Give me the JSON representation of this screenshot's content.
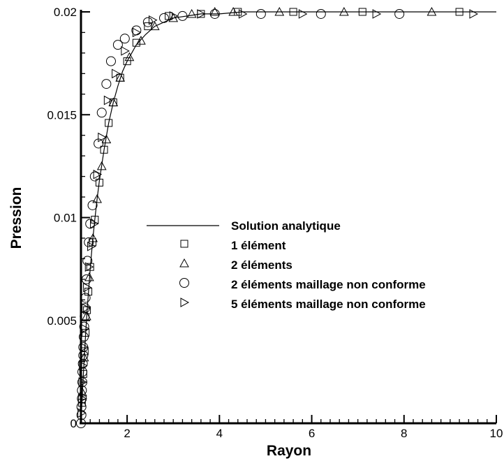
{
  "chart_data": {
    "type": "scatter",
    "title": "",
    "xlabel": "Rayon",
    "ylabel": "Pression",
    "xlim": [
      1,
      10
    ],
    "ylim": [
      0,
      0.02
    ],
    "x_ticks": [
      2,
      4,
      6,
      8,
      10
    ],
    "x_tick_labels": [
      "2",
      "4",
      "6",
      "8",
      "10"
    ],
    "y_ticks": [
      0,
      0.005,
      0.01,
      0.015,
      0.02
    ],
    "y_tick_labels": [
      "0",
      "0.005",
      "0.01",
      "0.015",
      "0.02"
    ],
    "grid": false,
    "legend_position": "center-right",
    "series": [
      {
        "name": "Solution analytique",
        "marker": "line",
        "x": [
          1.0,
          1.02,
          1.05,
          1.08,
          1.1,
          1.13,
          1.16,
          1.2,
          1.25,
          1.3,
          1.35,
          1.4,
          1.5,
          1.6,
          1.7,
          1.8,
          1.9,
          2.0,
          2.1,
          2.2,
          2.4,
          2.6,
          2.8,
          3.0,
          3.3,
          3.6,
          4.0,
          4.5,
          5.0,
          6.0,
          7.0,
          8.0,
          9.0,
          10.0
        ],
        "y": [
          0.0,
          0.00096,
          0.0023,
          0.0035,
          0.0043,
          0.0054,
          0.0063,
          0.0075,
          0.0088,
          0.0099,
          0.0109,
          0.0118,
          0.0133,
          0.0146,
          0.0156,
          0.0164,
          0.0171,
          0.0176,
          0.018,
          0.0184,
          0.0189,
          0.0193,
          0.0195,
          0.0197,
          0.0198,
          0.0199,
          0.0199,
          0.02,
          0.02,
          0.02,
          0.02,
          0.02,
          0.02,
          0.02
        ]
      },
      {
        "name": "1 élément",
        "marker": "square",
        "x": [
          1.02,
          1.05,
          1.08,
          1.1,
          1.13,
          1.16,
          1.2,
          1.25,
          1.3,
          1.4,
          1.5,
          1.6,
          1.7,
          1.85,
          2.0,
          2.2,
          2.45,
          2.9,
          3.6,
          4.4,
          5.6,
          7.1,
          9.2
        ],
        "y": [
          0.001,
          0.0024,
          0.0035,
          0.0044,
          0.0055,
          0.0064,
          0.0076,
          0.0088,
          0.0099,
          0.0117,
          0.0133,
          0.0146,
          0.0156,
          0.0168,
          0.0176,
          0.0185,
          0.0193,
          0.0198,
          0.0199,
          0.02,
          0.02,
          0.02,
          0.02
        ]
      },
      {
        "name": "2 éléments",
        "marker": "triangle",
        "x": [
          1.03,
          1.07,
          1.12,
          1.18,
          1.26,
          1.35,
          1.45,
          1.55,
          1.7,
          1.85,
          2.05,
          2.3,
          2.6,
          3.0,
          3.4,
          3.9,
          4.3,
          5.3,
          6.7,
          8.6
        ],
        "y": [
          0.0015,
          0.0032,
          0.0052,
          0.0071,
          0.009,
          0.0109,
          0.0125,
          0.0138,
          0.0156,
          0.0168,
          0.0178,
          0.0186,
          0.0193,
          0.0197,
          0.0199,
          0.02,
          0.02,
          0.02,
          0.02,
          0.02
        ]
      },
      {
        "name": "2 éléments maillage non conforme",
        "marker": "circle",
        "x": [
          1.0,
          1.01,
          1.01,
          1.02,
          1.02,
          1.03,
          1.03,
          1.04,
          1.05,
          1.05,
          1.06,
          1.07,
          1.08,
          1.09,
          1.1,
          1.12,
          1.14,
          1.17,
          1.2,
          1.25,
          1.3,
          1.38,
          1.45,
          1.55,
          1.65,
          1.8,
          1.95,
          2.2,
          2.45,
          2.8,
          3.2,
          3.9,
          4.9,
          6.2,
          7.9
        ],
        "y": [
          0.0,
          0.0004,
          0.0008,
          0.0012,
          0.0016,
          0.002,
          0.0025,
          0.0029,
          0.0033,
          0.0037,
          0.0042,
          0.0047,
          0.0052,
          0.0056,
          0.0061,
          0.007,
          0.0079,
          0.0088,
          0.0097,
          0.0106,
          0.012,
          0.0136,
          0.0151,
          0.0165,
          0.0176,
          0.0184,
          0.0187,
          0.0191,
          0.0195,
          0.0197,
          0.0198,
          0.0199,
          0.0199,
          0.0199,
          0.0199
        ]
      },
      {
        "name": "5 éléments maillage non conforme",
        "marker": "triangle-right",
        "x": [
          1.01,
          1.02,
          1.03,
          1.04,
          1.06,
          1.08,
          1.1,
          1.13,
          1.17,
          1.22,
          1.28,
          1.35,
          1.45,
          1.58,
          1.75,
          1.95,
          2.2,
          2.55,
          3.0,
          3.6,
          4.5,
          5.8,
          7.4,
          9.5
        ],
        "y": [
          0.0005,
          0.0012,
          0.002,
          0.0028,
          0.0037,
          0.0046,
          0.0056,
          0.0066,
          0.0076,
          0.0086,
          0.0097,
          0.0121,
          0.0139,
          0.0157,
          0.017,
          0.0181,
          0.019,
          0.0196,
          0.0198,
          0.0199,
          0.0199,
          0.0199,
          0.0199,
          0.0199
        ]
      }
    ]
  }
}
